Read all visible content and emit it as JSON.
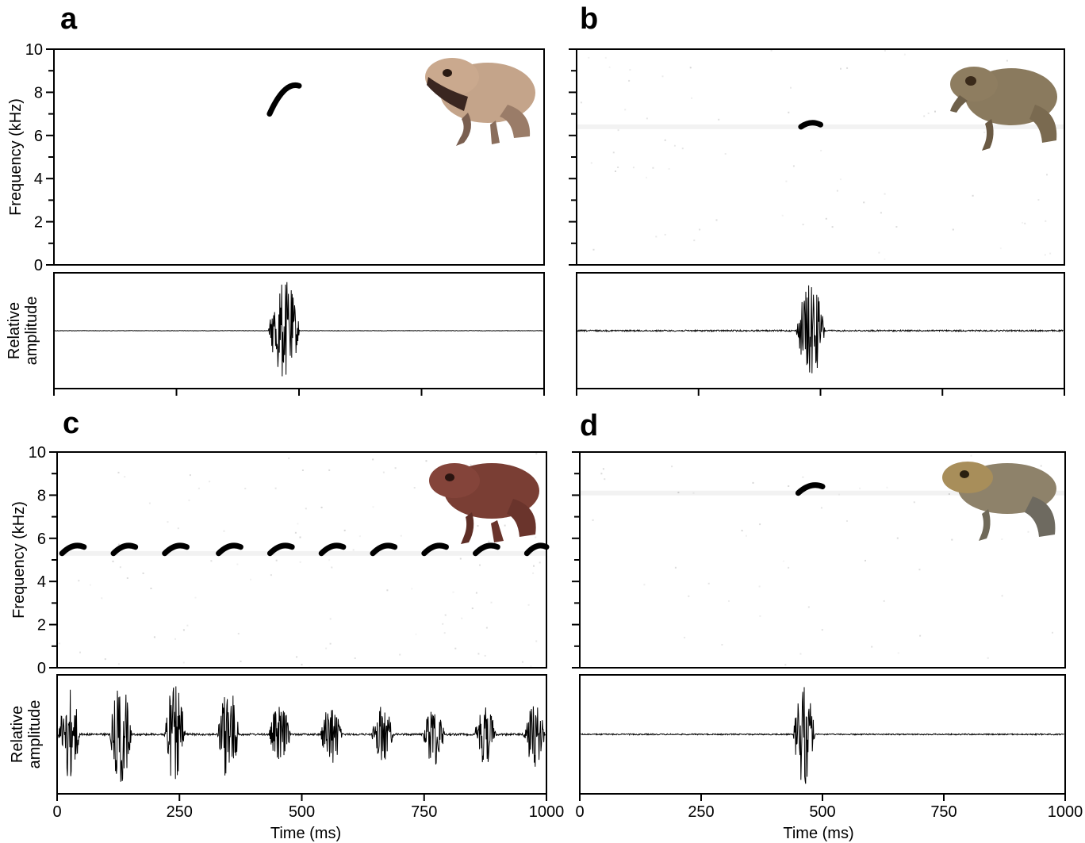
{
  "figure": {
    "y_axis_frequency_label": "Frequency (kHz)",
    "y_axis_amplitude_label_line1": "Relative",
    "y_axis_amplitude_label_line2": "amplitude",
    "x_axis_label": "Time (ms)",
    "frequency_ticks": [
      "0",
      "2",
      "4",
      "6",
      "8",
      "10"
    ],
    "time_ticks": [
      "0",
      "250",
      "500",
      "750",
      "1000"
    ],
    "colors": {
      "ink": "#000000",
      "background": "#ffffff"
    }
  },
  "panels": [
    {
      "letter": "a",
      "frog_icon": "frog-photo-pale-brown"
    },
    {
      "letter": "b",
      "frog_icon": "frog-photo-olive-brown"
    },
    {
      "letter": "c",
      "frog_icon": "frog-photo-reddish-brown"
    },
    {
      "letter": "d",
      "frog_icon": "frog-photo-grey-brown"
    }
  ],
  "chart_data": [
    {
      "panel": "a",
      "type": "spectrogram",
      "xlim": [
        0,
        1000
      ],
      "ylim_khz": [
        0,
        10
      ],
      "notes": [
        {
          "t_start": 440,
          "t_end": 500,
          "f_start": 7.0,
          "f_end": 8.3
        }
      ],
      "waveform_pulses": [
        {
          "t": 470,
          "width": 65,
          "amplitude": 0.95
        }
      ],
      "noise_level": 0.0
    },
    {
      "panel": "b",
      "type": "spectrogram",
      "xlim": [
        0,
        1000
      ],
      "ylim_khz": [
        0,
        10
      ],
      "notes": [
        {
          "t_start": 460,
          "t_end": 500,
          "f_start": 6.4,
          "f_end": 6.5
        }
      ],
      "waveform_pulses": [
        {
          "t": 480,
          "width": 60,
          "amplitude": 0.9
        }
      ],
      "noise_level": 0.08
    },
    {
      "panel": "c",
      "type": "spectrogram",
      "xlim": [
        0,
        1000
      ],
      "ylim_khz": [
        0,
        10
      ],
      "notes": [
        {
          "t_start": 10,
          "t_end": 55,
          "f_start": 5.3,
          "f_end": 5.6
        },
        {
          "t_start": 115,
          "t_end": 160,
          "f_start": 5.3,
          "f_end": 5.6
        },
        {
          "t_start": 220,
          "t_end": 265,
          "f_start": 5.3,
          "f_end": 5.6
        },
        {
          "t_start": 330,
          "t_end": 375,
          "f_start": 5.3,
          "f_end": 5.6
        },
        {
          "t_start": 435,
          "t_end": 480,
          "f_start": 5.3,
          "f_end": 5.6
        },
        {
          "t_start": 540,
          "t_end": 585,
          "f_start": 5.3,
          "f_end": 5.6
        },
        {
          "t_start": 645,
          "t_end": 690,
          "f_start": 5.3,
          "f_end": 5.6
        },
        {
          "t_start": 750,
          "t_end": 795,
          "f_start": 5.3,
          "f_end": 5.6
        },
        {
          "t_start": 855,
          "t_end": 900,
          "f_start": 5.3,
          "f_end": 5.6
        },
        {
          "t_start": 960,
          "t_end": 1000,
          "f_start": 5.3,
          "f_end": 5.6
        }
      ],
      "waveform_pulses": [
        {
          "t": 25,
          "width": 45,
          "amplitude": 0.85
        },
        {
          "t": 130,
          "width": 45,
          "amplitude": 0.95
        },
        {
          "t": 240,
          "width": 45,
          "amplitude": 0.9
        },
        {
          "t": 350,
          "width": 45,
          "amplitude": 0.88
        },
        {
          "t": 455,
          "width": 45,
          "amplitude": 0.55
        },
        {
          "t": 560,
          "width": 45,
          "amplitude": 0.6
        },
        {
          "t": 665,
          "width": 45,
          "amplitude": 0.55
        },
        {
          "t": 770,
          "width": 45,
          "amplitude": 0.6
        },
        {
          "t": 875,
          "width": 45,
          "amplitude": 0.55
        },
        {
          "t": 975,
          "width": 45,
          "amplitude": 0.6
        }
      ],
      "noise_level": 0.12
    },
    {
      "panel": "d",
      "type": "spectrogram",
      "xlim": [
        0,
        1000
      ],
      "ylim_khz": [
        0,
        10
      ],
      "notes": [
        {
          "t_start": 450,
          "t_end": 500,
          "f_start": 8.1,
          "f_end": 8.4
        }
      ],
      "waveform_pulses": [
        {
          "t": 462,
          "width": 45,
          "amplitude": 0.95
        }
      ],
      "noise_level": 0.06
    }
  ]
}
